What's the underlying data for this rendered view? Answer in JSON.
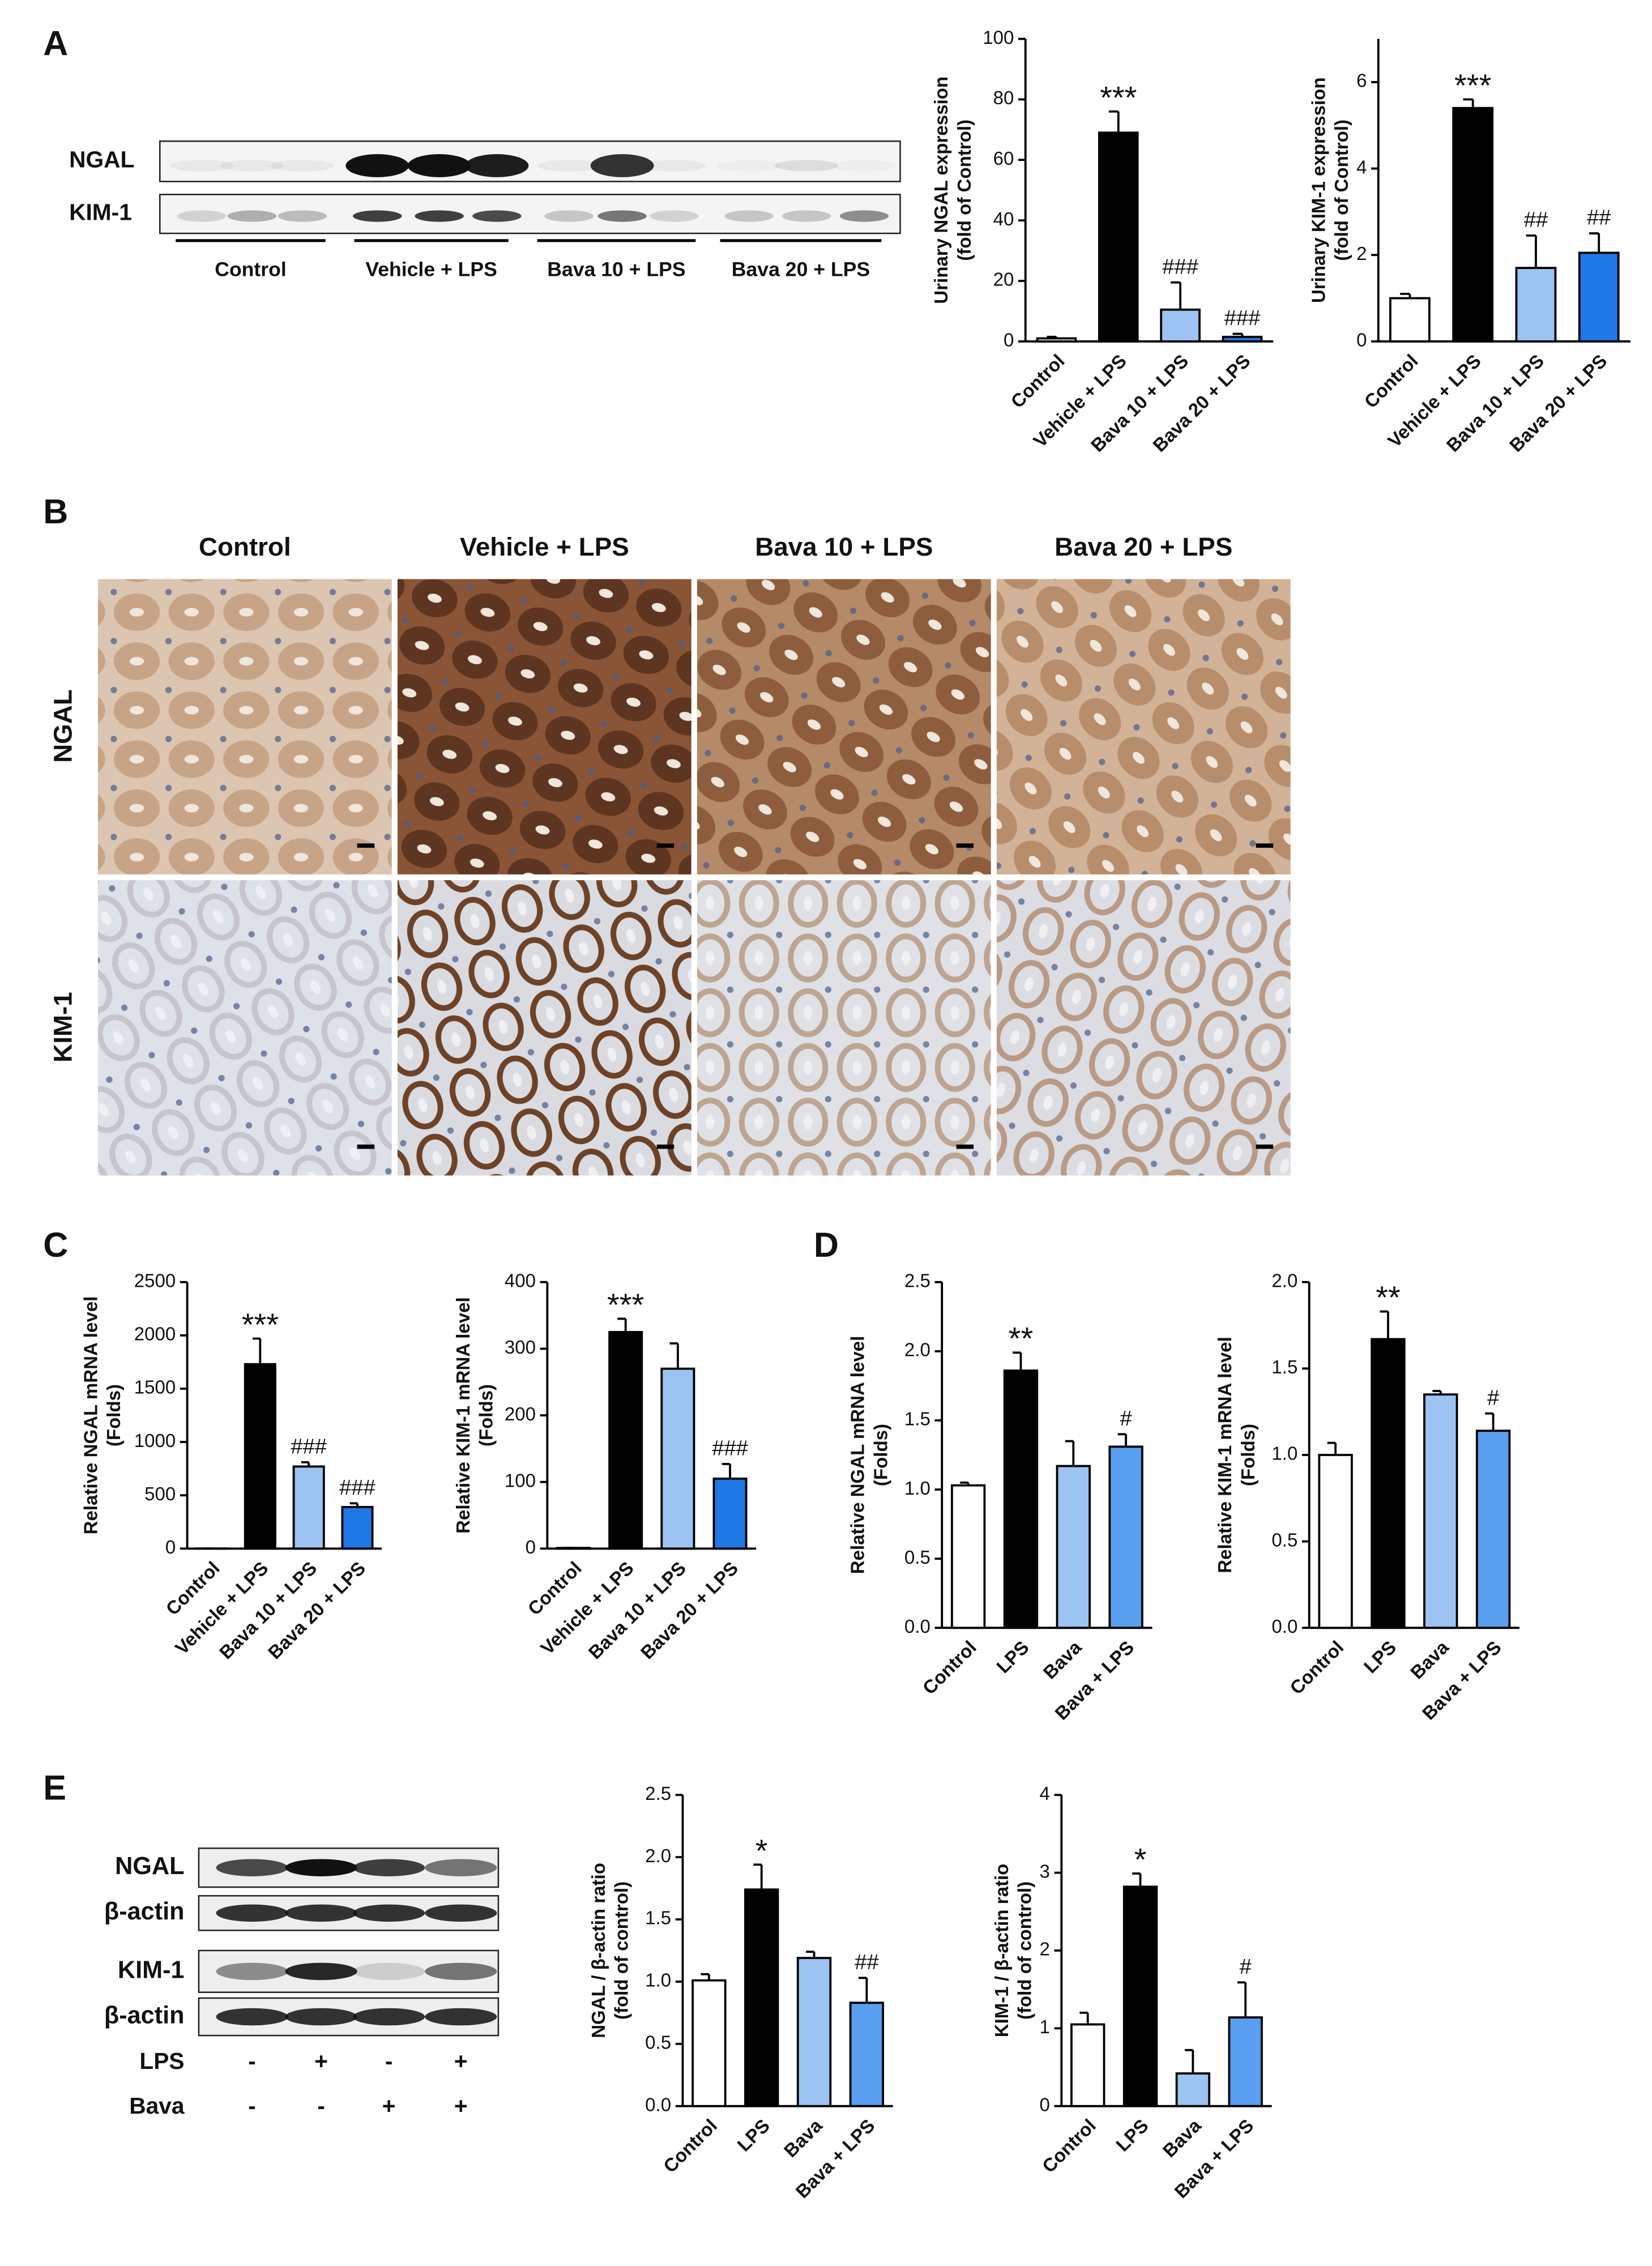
{
  "chart_data": [
    {
      "type": "bar",
      "ylabel": [
        "Urinary NGAL expression",
        "(fold of Control)"
      ],
      "categories": [
        "Control",
        "Vehicle + LPS",
        "Bava 10 + LPS",
        "Bava 20 + LPS"
      ],
      "values": [
        1,
        69,
        10.5,
        1.5
      ],
      "errors": [
        0.5,
        7,
        9,
        1
      ],
      "colors": [
        "#ffffff",
        "#000000",
        "#9dc3f3",
        "#1f78e6"
      ],
      "annotations": [
        null,
        "***",
        "###",
        "###"
      ],
      "ylim": [
        0,
        100
      ],
      "yticks": [
        0,
        20,
        40,
        60,
        80,
        100
      ]
    },
    {
      "type": "bar",
      "ylabel": [
        "Urinary KIM-1 expression",
        "(fold of Control)"
      ],
      "categories": [
        "Control",
        "Vehicle + LPS",
        "Bava 10 + LPS",
        "Bava 20 + LPS"
      ],
      "values": [
        1,
        5.4,
        1.7,
        2.05
      ],
      "errors": [
        0.1,
        0.2,
        0.75,
        0.45
      ],
      "colors": [
        "#ffffff",
        "#000000",
        "#9dc3f3",
        "#1f78e6"
      ],
      "annotations": [
        null,
        "***",
        "##",
        "##"
      ],
      "ylim": [
        0,
        7
      ],
      "yticks": [
        0,
        2,
        4,
        6
      ]
    },
    {
      "type": "bar",
      "ylabel": [
        "Relative NGAL mRNA level",
        "(Folds)"
      ],
      "categories": [
        "Control",
        "Vehicle + LPS",
        "Bava 10 + LPS",
        "Bava 20 + LPS"
      ],
      "values": [
        1,
        1730,
        770,
        390
      ],
      "errors": [
        0,
        240,
        40,
        35
      ],
      "colors": [
        "#ffffff",
        "#000000",
        "#9dc3f3",
        "#1f78e6"
      ],
      "annotations": [
        null,
        "***",
        "###",
        "###"
      ],
      "ylim": [
        0,
        2500
      ],
      "yticks": [
        0,
        500,
        1000,
        1500,
        2000,
        2500
      ]
    },
    {
      "type": "bar",
      "ylabel": [
        "Relative KIM-1 mRNA level",
        "(Folds)"
      ],
      "categories": [
        "Control",
        "Vehicle + LPS",
        "Bava 10 + LPS",
        "Bava 20 + LPS"
      ],
      "values": [
        1,
        325,
        270,
        105
      ],
      "errors": [
        0,
        20,
        38,
        22
      ],
      "colors": [
        "#ffffff",
        "#000000",
        "#9dc3f3",
        "#1f78e6"
      ],
      "annotations": [
        null,
        "***",
        null,
        "###"
      ],
      "ylim": [
        0,
        400
      ],
      "yticks": [
        0,
        100,
        200,
        300,
        400
      ]
    },
    {
      "type": "bar",
      "ylabel": [
        "Relative NGAL mRNA level",
        "(Folds)"
      ],
      "categories": [
        "Control",
        "LPS",
        "Bava",
        "Bava + LPS"
      ],
      "values": [
        1.03,
        1.86,
        1.17,
        1.31
      ],
      "errors": [
        0.02,
        0.13,
        0.18,
        0.09
      ],
      "colors": [
        "#ffffff",
        "#000000",
        "#9dc3f3",
        "#5a9ef0"
      ],
      "annotations": [
        null,
        "**",
        null,
        "#"
      ],
      "ylim": [
        0,
        2.5
      ],
      "yticks": [
        {
          "value": 0,
          "label": "0.0"
        },
        0.5,
        {
          "value": 1,
          "label": "1.0"
        },
        1.5,
        {
          "value": 2,
          "label": "2.0"
        },
        2.5
      ]
    },
    {
      "type": "bar",
      "ylabel": [
        "Relative KIM-1 mRNA level",
        "(Folds)"
      ],
      "categories": [
        "Control",
        "LPS",
        "Bava",
        "Bava + LPS"
      ],
      "values": [
        1.0,
        1.67,
        1.35,
        1.14
      ],
      "errors": [
        0.07,
        0.16,
        0.02,
        0.1
      ],
      "colors": [
        "#ffffff",
        "#000000",
        "#9dc3f3",
        "#5a9ef0"
      ],
      "annotations": [
        null,
        "**",
        null,
        "#"
      ],
      "ylim": [
        0,
        2
      ],
      "yticks": [
        {
          "value": 0,
          "label": "0.0"
        },
        0.5,
        {
          "value": 1,
          "label": "1.0"
        },
        1.5,
        {
          "value": 2,
          "label": "2.0"
        }
      ]
    },
    {
      "type": "bar",
      "ylabel": [
        "NGAL / β-actin ratio",
        "(fold of control)"
      ],
      "categories": [
        "Control",
        "LPS",
        "Bava",
        "Bava + LPS"
      ],
      "values": [
        1.01,
        1.74,
        1.19,
        0.83
      ],
      "errors": [
        0.05,
        0.2,
        0.05,
        0.2
      ],
      "colors": [
        "#ffffff",
        "#000000",
        "#9dc3f3",
        "#5a9ef0"
      ],
      "annotations": [
        null,
        "*",
        null,
        "##"
      ],
      "ylim": [
        0,
        2.5
      ],
      "yticks": [
        {
          "value": 0,
          "label": "0.0"
        },
        0.5,
        {
          "value": 1,
          "label": "1.0"
        },
        1.5,
        {
          "value": 2,
          "label": "2.0"
        },
        2.5
      ]
    },
    {
      "type": "bar",
      "ylabel": [
        "KIM-1 / β-actin ratio",
        "(fold of control)"
      ],
      "categories": [
        "Control",
        "LPS",
        "Bava",
        "Bava + LPS"
      ],
      "values": [
        1.05,
        2.82,
        0.42,
        1.14
      ],
      "errors": [
        0.15,
        0.17,
        0.3,
        0.45
      ],
      "colors": [
        "#ffffff",
        "#000000",
        "#9dc3f3",
        "#5a9ef0"
      ],
      "annotations": [
        null,
        "*",
        null,
        "#"
      ],
      "ylim": [
        0,
        4
      ],
      "yticks": [
        0,
        1,
        2,
        3,
        4
      ]
    }
  ],
  "figure": {
    "panel_labels": [
      "A",
      "B",
      "C",
      "D",
      "E"
    ],
    "blot_a": {
      "rows": [
        "NGAL",
        "KIM-1"
      ],
      "groups": [
        "Control",
        "Vehicle + LPS",
        "Bava 10 + LPS",
        "Bava 20 + LPS"
      ]
    },
    "histology": {
      "columns": [
        "Control",
        "Vehicle + LPS",
        "Bava 10 + LPS",
        "Bava 20 + LPS"
      ],
      "rows": [
        "NGAL",
        "KIM-1"
      ]
    },
    "blot_e": {
      "rows": [
        "NGAL",
        "β-actin",
        "KIM-1",
        "β-actin"
      ],
      "treatments": [
        {
          "name": "LPS",
          "signs": [
            "-",
            "+",
            "-",
            "+"
          ]
        },
        {
          "name": "Bava",
          "signs": [
            "-",
            "-",
            "+",
            "+"
          ]
        }
      ]
    }
  }
}
